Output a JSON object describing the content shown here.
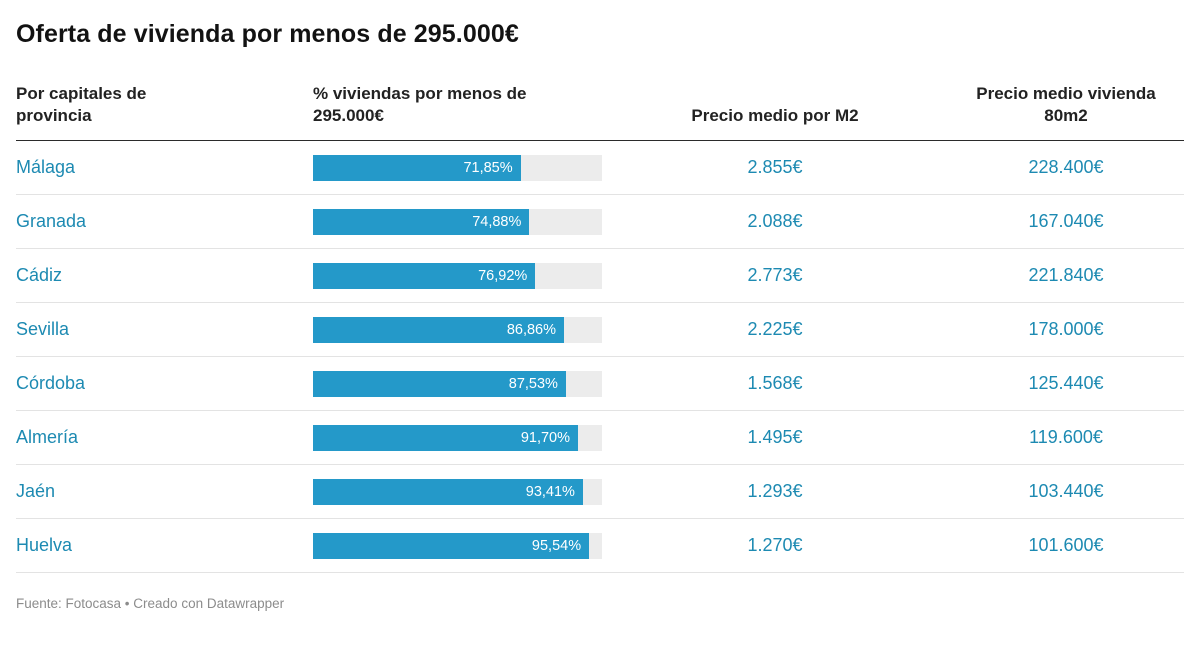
{
  "title": "Oferta de vivienda por menos de 295.000€",
  "footer": "Fuente: Fotocasa • Creado con Datawrapper",
  "colors": {
    "accent": "#2499c9",
    "bar_track": "#ececec",
    "text_link": "#1d8ab2"
  },
  "chart_data": {
    "type": "table",
    "title": "Oferta de vivienda por menos de 295.000€",
    "columns": [
      "Por capitales de\nprovincia",
      "% viviendas por menos de\n295.000€",
      "Precio medio por M2",
      "Precio medio vivienda\n80m2"
    ],
    "bar_axis": {
      "min": 0,
      "max": 100,
      "unit": "%"
    },
    "legend": "none",
    "rows": [
      {
        "city": "Málaga",
        "pct": 71.85,
        "pct_label": "71,85%",
        "price_m2": "2.855€",
        "price_80m2": "228.400€"
      },
      {
        "city": "Granada",
        "pct": 74.88,
        "pct_label": "74,88%",
        "price_m2": "2.088€",
        "price_80m2": "167.040€"
      },
      {
        "city": "Cádiz",
        "pct": 76.92,
        "pct_label": "76,92%",
        "price_m2": "2.773€",
        "price_80m2": "221.840€"
      },
      {
        "city": "Sevilla",
        "pct": 86.86,
        "pct_label": "86,86%",
        "price_m2": "2.225€",
        "price_80m2": "178.000€"
      },
      {
        "city": "Córdoba",
        "pct": 87.53,
        "pct_label": "87,53%",
        "price_m2": "1.568€",
        "price_80m2": "125.440€"
      },
      {
        "city": "Almería",
        "pct": 91.7,
        "pct_label": "91,70%",
        "price_m2": "1.495€",
        "price_80m2": "119.600€"
      },
      {
        "city": "Jaén",
        "pct": 93.41,
        "pct_label": "93,41%",
        "price_m2": "1.293€",
        "price_80m2": "103.440€"
      },
      {
        "city": "Huelva",
        "pct": 95.54,
        "pct_label": "95,54%",
        "price_m2": "1.270€",
        "price_80m2": "101.600€"
      }
    ]
  }
}
